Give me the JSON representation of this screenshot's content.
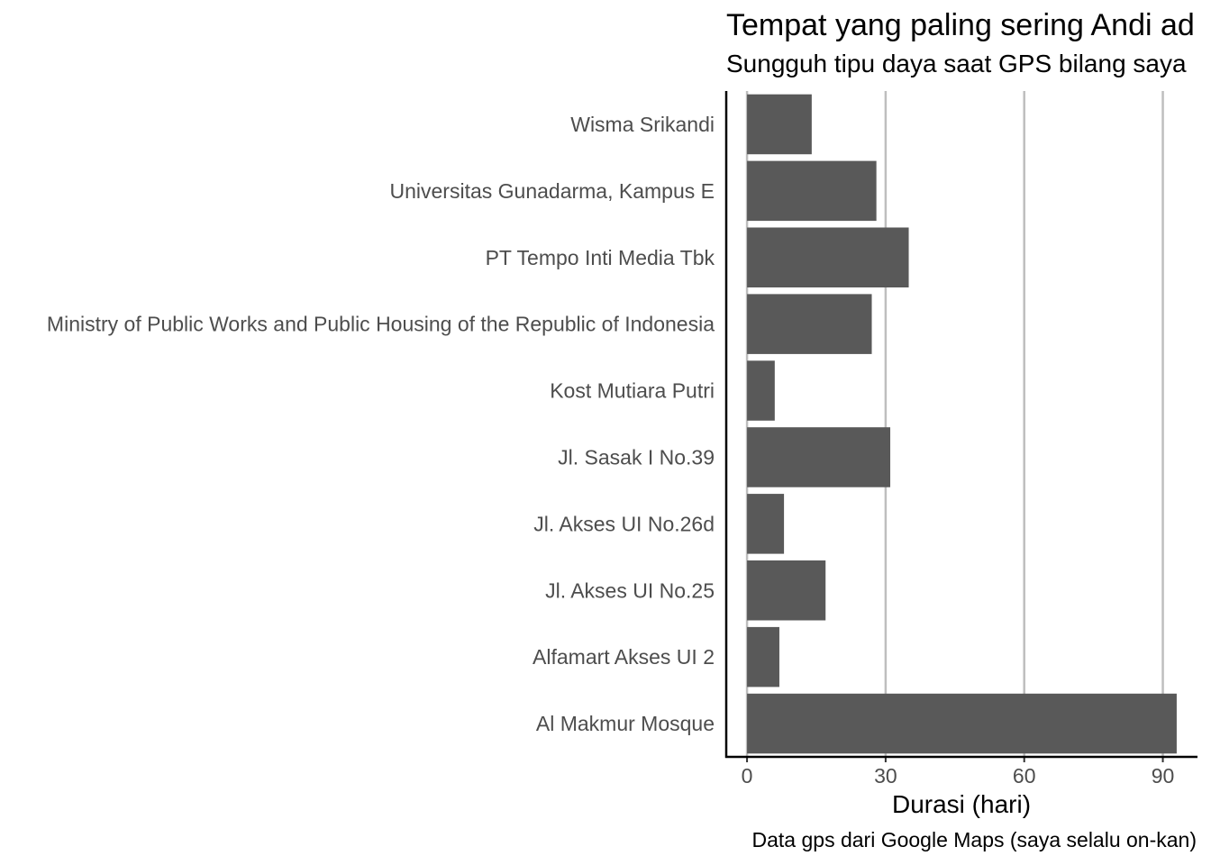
{
  "chart_data": {
    "type": "bar",
    "orientation": "horizontal",
    "title": "Tempat yang paling sering Andi ad",
    "subtitle": "Sungguh tipu daya saat GPS bilang saya",
    "xlabel": "Durasi (hari)",
    "ylabel": "",
    "caption": "Data gps dari Google Maps (saya selalu on-kan)",
    "categories": [
      "Wisma Srikandi",
      "Universitas Gunadarma, Kampus E",
      "PT Tempo Inti Media Tbk",
      "Ministry of Public Works and Public Housing of the Republic of Indonesia",
      "Kost Mutiara Putri",
      "Jl. Sasak I No.39",
      "Jl. Akses UI No.26d",
      "Jl. Akses UI No.25",
      "Alfamart Akses UI 2",
      "Al Makmur Mosque"
    ],
    "values": [
      14,
      28,
      35,
      27,
      6,
      31,
      8,
      17,
      7,
      93
    ],
    "xlim": [
      -4.5,
      97.5
    ],
    "xticks": [
      0,
      30,
      60,
      90
    ],
    "grid": "vertical major",
    "bar_color": "#595959",
    "grid_color": "#bebebe",
    "legend": "none"
  }
}
